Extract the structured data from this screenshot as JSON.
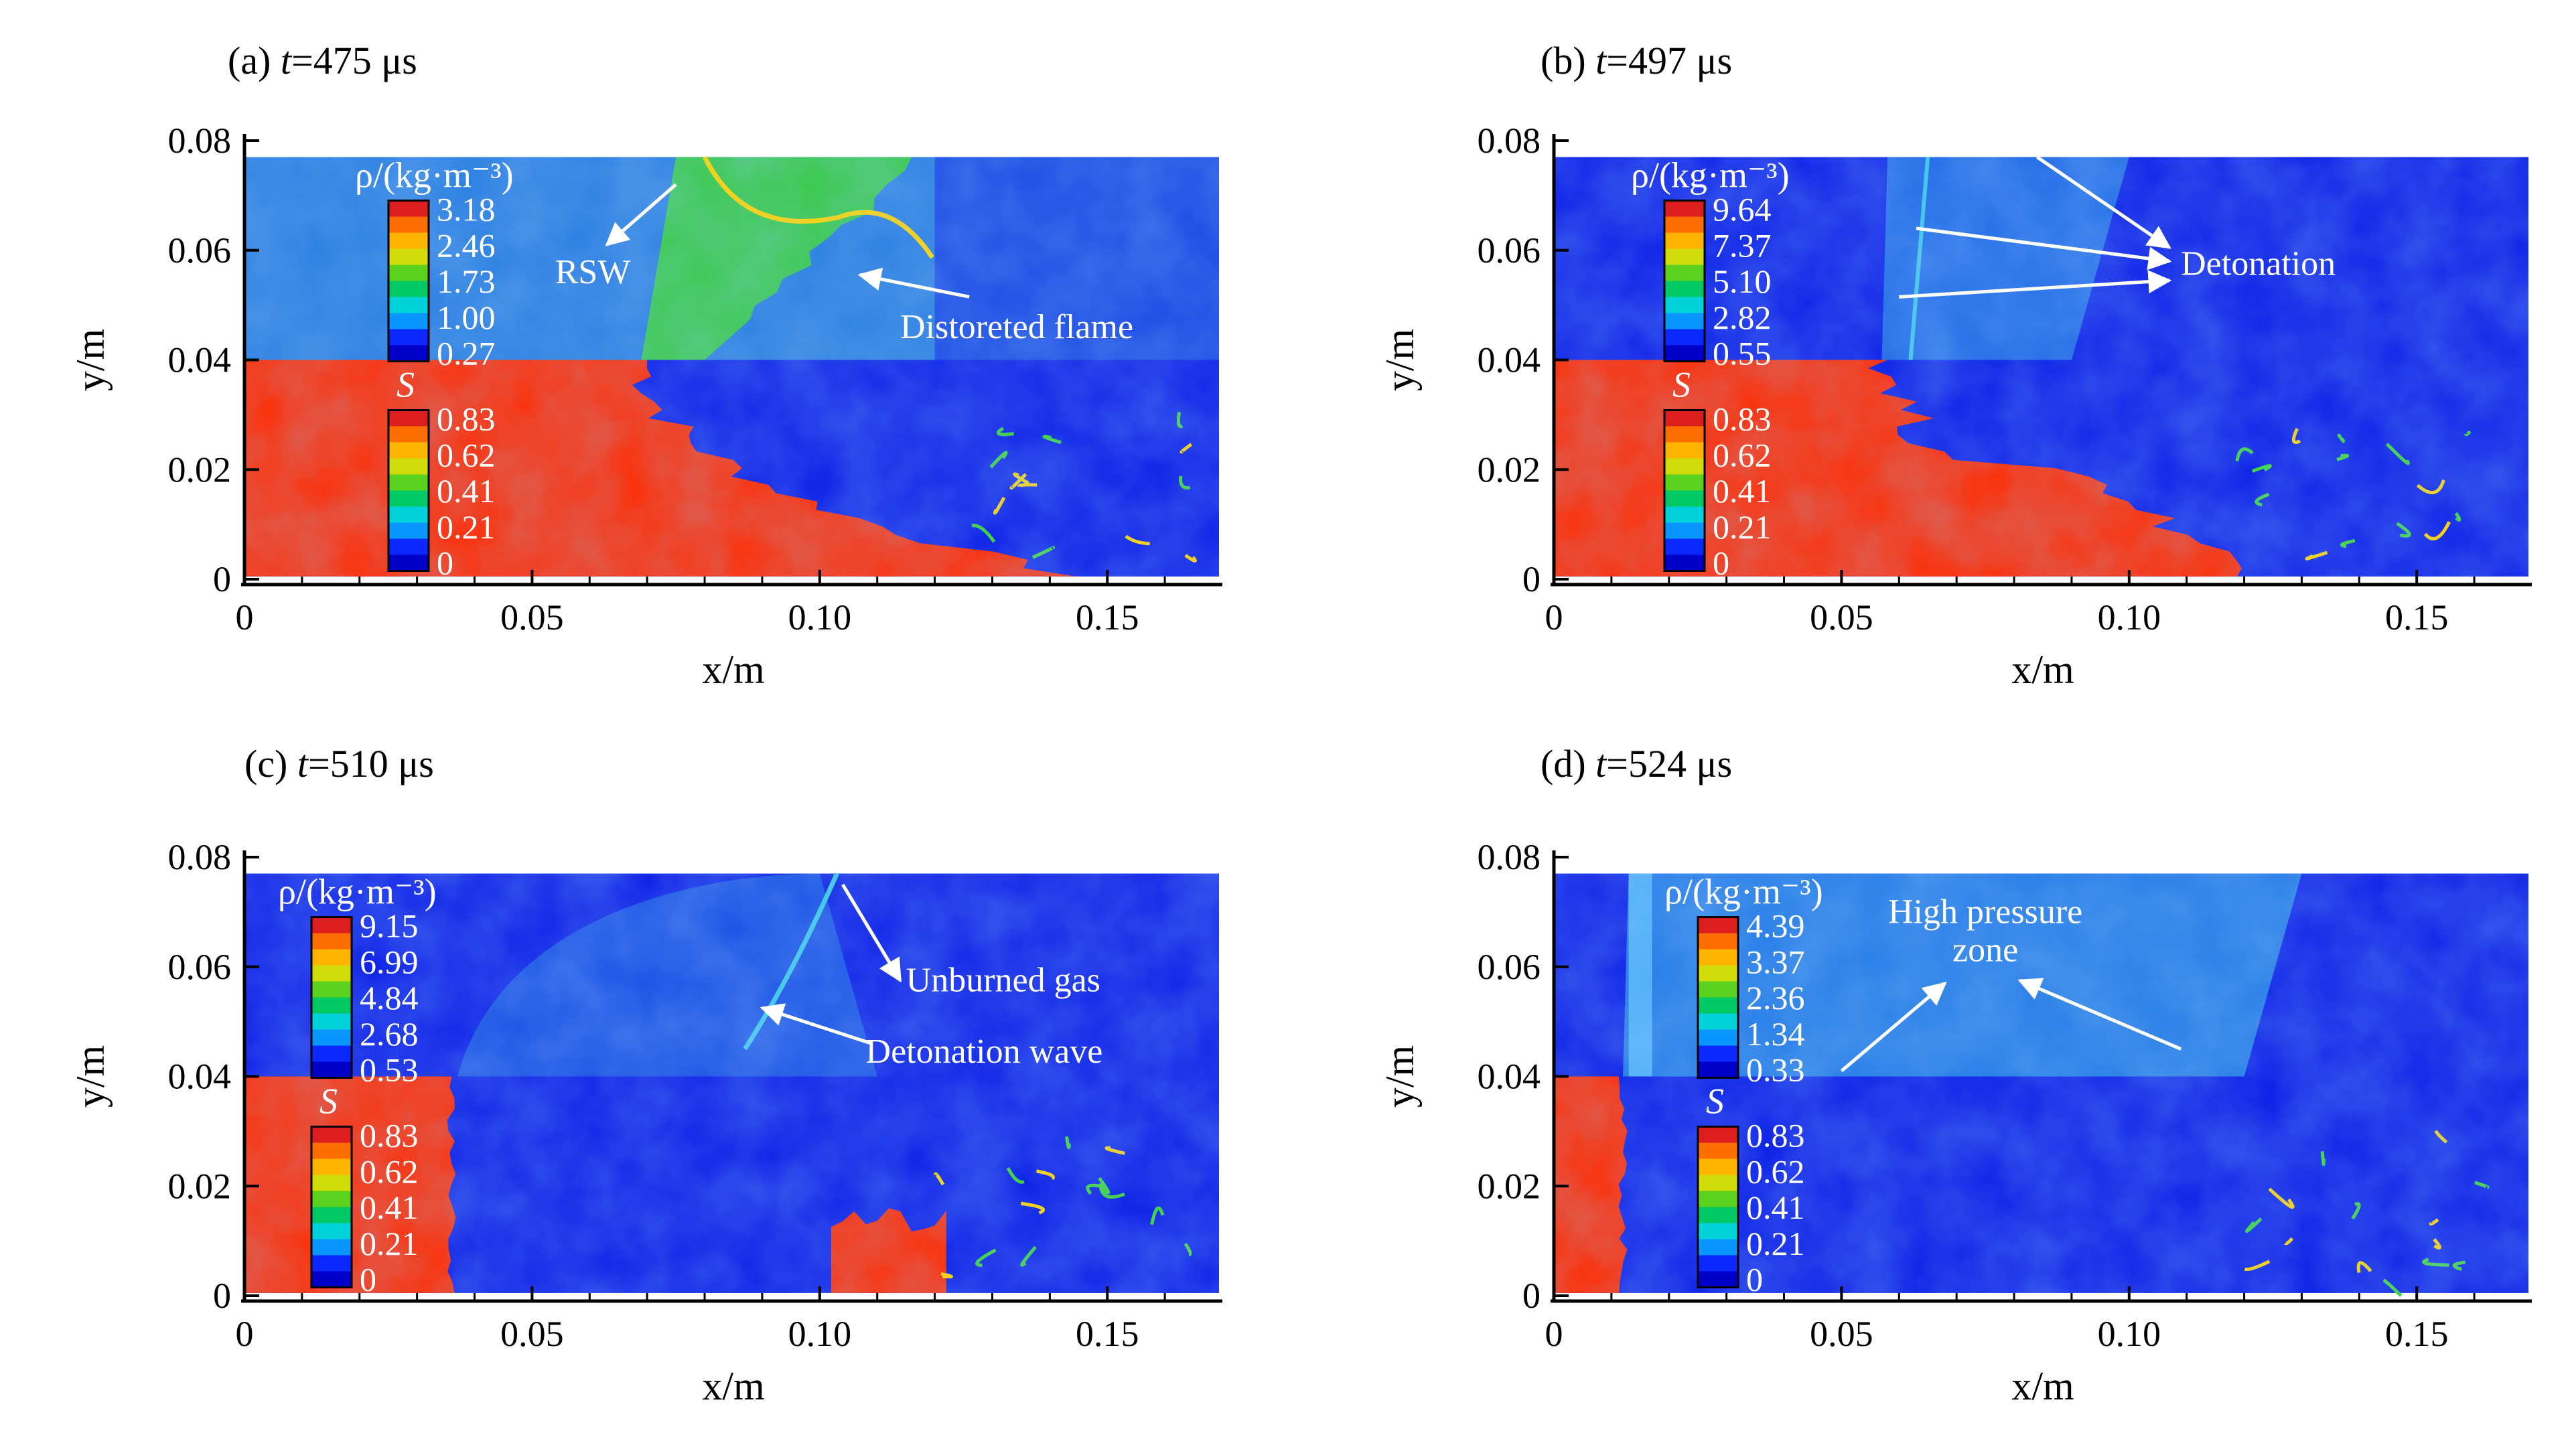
{
  "figure": {
    "panels": [
      {
        "label": "(a) ",
        "t_symbol": "t",
        "t_value": "=475 μs",
        "rho_title": "ρ/(kg·m⁻³)",
        "rho_levels": [
          "3.18",
          "2.46",
          "1.73",
          "1.00",
          "0.27"
        ],
        "s_title": "S",
        "s_levels": [
          "0.83",
          "0.62",
          "0.41",
          "0.21",
          "0"
        ],
        "annotations": [
          "RSW",
          "Distoreted flame"
        ]
      },
      {
        "label": "(b) ",
        "t_symbol": "t",
        "t_value": "=497 μs",
        "rho_title": "ρ/(kg·m⁻³)",
        "rho_levels": [
          "9.64",
          "7.37",
          "5.10",
          "2.82",
          "0.55"
        ],
        "s_title": "S",
        "s_levels": [
          "0.83",
          "0.62",
          "0.41",
          "0.21",
          "0"
        ],
        "annotations": [
          "Detonation"
        ]
      },
      {
        "label": "(c) ",
        "t_symbol": "t",
        "t_value": "=510 μs",
        "rho_title": "ρ/(kg·m⁻³)",
        "rho_levels": [
          "9.15",
          "6.99",
          "4.84",
          "2.68",
          "0.53"
        ],
        "s_title": "S",
        "s_levels": [
          "0.83",
          "0.62",
          "0.41",
          "0.21",
          "0"
        ],
        "annotations": [
          "Unburned gas",
          "Detonation wave"
        ]
      },
      {
        "label": "(d) ",
        "t_symbol": "t",
        "t_value": "=524 μs",
        "rho_title": "ρ/(kg·m⁻³)",
        "rho_levels": [
          "4.39",
          "3.37",
          "2.36",
          "1.34",
          "0.33"
        ],
        "s_title": "S",
        "s_levels": [
          "0.83",
          "0.62",
          "0.41",
          "0.21",
          "0"
        ],
        "annotations": [
          "High pressure",
          "zone"
        ]
      }
    ]
  },
  "colors": {
    "background_blue": "#0a1ee6",
    "panel_a_top_blue": "#2a7de0",
    "burned_red": "#ff2a00",
    "flame_green": "#3cd23c",
    "shock_cyan": "#3cc8e6",
    "colormap": [
      "#0000c8",
      "#0a28ff",
      "#0a96ff",
      "#00d2dc",
      "#00c864",
      "#5ad21e",
      "#d2dc0a",
      "#ffb400",
      "#ff6e00",
      "#dc1e1e"
    ]
  },
  "chart_data": [
    {
      "type": "heatmap",
      "title": "(a) t=475 μs",
      "xlabel": "x/m",
      "ylabel": "y/m",
      "xlim": [
        0,
        0.17
      ],
      "ylim": [
        0,
        0.08
      ],
      "x_ticks": [
        0,
        0.05,
        0.1,
        0.15
      ],
      "x_tick_labels": [
        "0",
        "0.05",
        "0.10",
        "0.15"
      ],
      "y_ticks": [
        0,
        0.02,
        0.04,
        0.06,
        0.08
      ],
      "y_tick_labels": [
        "0",
        "0.02",
        "0.04",
        "0.06",
        "0.08"
      ],
      "upper_half_field": "ρ",
      "lower_half_field": "S",
      "rho_legend_values": [
        3.18,
        2.46,
        1.73,
        1.0,
        0.27
      ],
      "s_legend_values": [
        0.83,
        0.62,
        0.41,
        0.21,
        0
      ],
      "burned_front_x": 0.07,
      "annotations": [
        "RSW",
        "Distoreted flame"
      ]
    },
    {
      "type": "heatmap",
      "title": "(b) t=497 μs",
      "xlabel": "x/m",
      "ylabel": "y/m",
      "xlim": [
        0,
        0.17
      ],
      "ylim": [
        0,
        0.08
      ],
      "x_ticks": [
        0,
        0.05,
        0.1,
        0.15
      ],
      "x_tick_labels": [
        "0",
        "0.05",
        "0.10",
        "0.15"
      ],
      "y_ticks": [
        0,
        0.02,
        0.04,
        0.06,
        0.08
      ],
      "y_tick_labels": [
        "0",
        "0.02",
        "0.04",
        "0.06",
        "0.08"
      ],
      "upper_half_field": "ρ",
      "lower_half_field": "S",
      "rho_legend_values": [
        9.64,
        7.37,
        5.1,
        2.82,
        0.55
      ],
      "s_legend_values": [
        0.83,
        0.62,
        0.41,
        0.21,
        0
      ],
      "burned_front_x": 0.058,
      "annotations": [
        "Detonation"
      ]
    },
    {
      "type": "heatmap",
      "title": "(c) t=510 μs",
      "xlabel": "x/m",
      "ylabel": "y/m",
      "xlim": [
        0,
        0.17
      ],
      "ylim": [
        0,
        0.08
      ],
      "x_ticks": [
        0,
        0.05,
        0.1,
        0.15
      ],
      "x_tick_labels": [
        "0",
        "0.05",
        "0.10",
        "0.15"
      ],
      "y_ticks": [
        0,
        0.02,
        0.04,
        0.06,
        0.08
      ],
      "y_tick_labels": [
        "0",
        "0.02",
        "0.04",
        "0.06",
        "0.08"
      ],
      "upper_half_field": "ρ",
      "lower_half_field": "S",
      "rho_legend_values": [
        9.15,
        6.99,
        4.84,
        2.68,
        0.53
      ],
      "s_legend_values": [
        0.83,
        0.62,
        0.41,
        0.21,
        0
      ],
      "burned_front_x": 0.036,
      "annotations": [
        "Unburned gas",
        "Detonation wave"
      ]
    },
    {
      "type": "heatmap",
      "title": "(d) t=524 μs",
      "xlabel": "x/m",
      "ylabel": "y/m",
      "xlim": [
        0,
        0.17
      ],
      "ylim": [
        0,
        0.08
      ],
      "x_ticks": [
        0,
        0.05,
        0.1,
        0.15
      ],
      "x_tick_labels": [
        "0",
        "0.05",
        "0.10",
        "0.15"
      ],
      "y_ticks": [
        0,
        0.02,
        0.04,
        0.06,
        0.08
      ],
      "y_tick_labels": [
        "0",
        "0.02",
        "0.04",
        "0.06",
        "0.08"
      ],
      "upper_half_field": "ρ",
      "lower_half_field": "S",
      "rho_legend_values": [
        4.39,
        3.37,
        2.36,
        1.34,
        0.33
      ],
      "s_legend_values": [
        0.83,
        0.62,
        0.41,
        0.21,
        0
      ],
      "burned_front_x": 0.012,
      "annotations": [
        "High pressure zone"
      ]
    }
  ]
}
